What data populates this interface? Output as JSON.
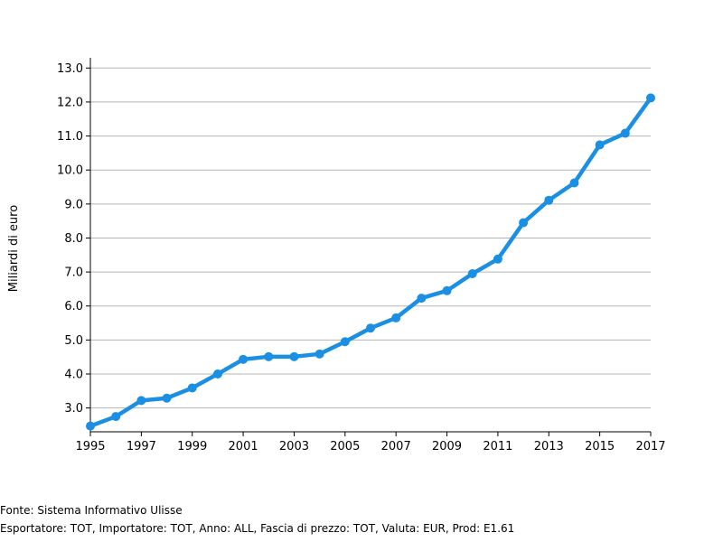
{
  "chart_data": {
    "type": "line",
    "ylabel": "Miliardi di euro",
    "xlabel": "",
    "x": [
      1995,
      1996,
      1997,
      1998,
      1999,
      2000,
      2001,
      2002,
      2003,
      2004,
      2005,
      2006,
      2007,
      2008,
      2009,
      2010,
      2011,
      2012,
      2013,
      2014,
      2015,
      2016,
      2017
    ],
    "x_tick_labels": [
      "1995",
      "1997",
      "1999",
      "2001",
      "2003",
      "2005",
      "2007",
      "2009",
      "2011",
      "2013",
      "2015",
      "2017"
    ],
    "y_tick_labels": [
      "3.0",
      "4.0",
      "5.0",
      "6.0",
      "7.0",
      "8.0",
      "9.0",
      "10.0",
      "11.0",
      "12.0",
      "13.0"
    ],
    "xlim": [
      1995,
      2017
    ],
    "ylim": [
      2.3,
      13.3
    ],
    "grid": "horizontal",
    "series": [
      {
        "color": "#1a8fe3",
        "values": [
          2.47,
          2.75,
          3.22,
          3.29,
          3.59,
          4.0,
          4.43,
          4.51,
          4.51,
          4.59,
          4.95,
          5.35,
          5.65,
          6.23,
          6.45,
          6.95,
          7.38,
          8.45,
          9.11,
          9.62,
          10.74,
          11.08,
          12.12
        ]
      }
    ]
  },
  "footer": {
    "source": "Fonte: Sistema Informativo Ulisse",
    "filters": "Esportatore: TOT, Importatore: TOT, Anno: ALL, Fascia di prezzo: TOT, Valuta: EUR, Prod: E1.61"
  }
}
